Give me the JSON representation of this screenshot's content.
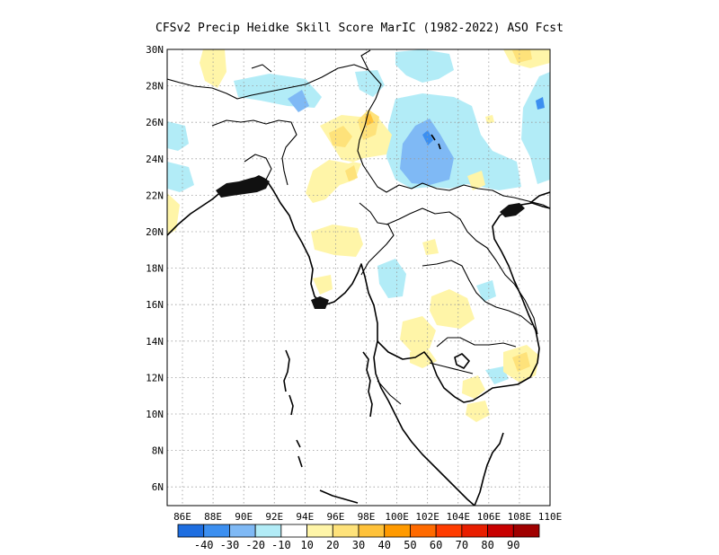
{
  "title": "CFSv2 Precip Heidke Skill Score MarIC (1982-2022) ASO Fcst",
  "map": {
    "lat_labels": [
      "30N",
      "28N",
      "26N",
      "24N",
      "22N",
      "20N",
      "18N",
      "16N",
      "14N",
      "12N",
      "10N",
      "8N",
      "6N"
    ],
    "lon_labels": [
      "86E",
      "88E",
      "90E",
      "92E",
      "94E",
      "96E",
      "98E",
      "100E",
      "102E",
      "104E",
      "106E",
      "108E",
      "110E"
    ]
  },
  "colorbar": {
    "labels": [
      "-40",
      "-30",
      "-20",
      "-10",
      "10",
      "20",
      "30",
      "40",
      "50",
      "60",
      "70",
      "80",
      "90"
    ],
    "colors": [
      "#1e6ee0",
      "#3c8ff0",
      "#7fb9f5",
      "#b2ecf7",
      "#ffffff",
      "#fff5a8",
      "#fee27a",
      "#ffc23a",
      "#ff9a00",
      "#ff6a00",
      "#ff3c00",
      "#e81e00",
      "#c80000",
      "#a00000"
    ]
  },
  "colors": {
    "blue_light": "#b2ecf7",
    "blue_mid": "#7fb9f5",
    "blue_dark": "#3c8ff0",
    "yellow_light": "#fff5a8",
    "yellow_mid": "#fee27a",
    "orange": "#ffc23a"
  }
}
